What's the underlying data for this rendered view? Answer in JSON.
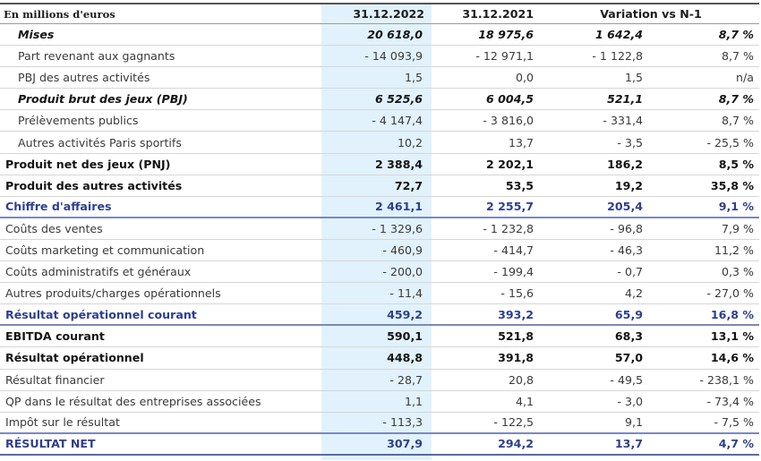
{
  "table": {
    "header": {
      "label": "En millions d'euros",
      "col1": "31.12.2022",
      "col2": "31.12.2021",
      "variation": "Variation vs N-1"
    },
    "highlight_color": "#e1f2fc",
    "accent_color": "#2e3f8f",
    "rows": [
      {
        "label": "Mises",
        "style": "ital",
        "indent": true,
        "v2022": "20 618,0",
        "v2021": "18 975,6",
        "var_abs": "1 642,4",
        "var_pct": "8,7 %"
      },
      {
        "label": "Part revenant aux gagnants",
        "style": "light",
        "indent": true,
        "v2022": "- 14 093,9",
        "v2021": "- 12 971,1",
        "var_abs": "- 1 122,8",
        "var_pct": "8,7 %"
      },
      {
        "label": "PBJ des autres activités",
        "style": "light",
        "indent": true,
        "v2022": "1,5",
        "v2021": "0,0",
        "var_abs": "1,5",
        "var_pct": "n/a"
      },
      {
        "label": "Produit brut des jeux (PBJ)",
        "style": "ital",
        "indent": true,
        "v2022": "6 525,6",
        "v2021": "6 004,5",
        "var_abs": "521,1",
        "var_pct": "8,7 %"
      },
      {
        "label": "Prélèvements publics",
        "style": "light",
        "indent": true,
        "v2022": "- 4 147,4",
        "v2021": "- 3 816,0",
        "var_abs": "- 331,4",
        "var_pct": "8,7 %"
      },
      {
        "label": "Autres activités Paris sportifs",
        "style": "light",
        "indent": true,
        "v2022": "10,2",
        "v2021": "13,7",
        "var_abs": "- 3,5",
        "var_pct": "- 25,5 %"
      },
      {
        "label": "Produit net des jeux (PNJ)",
        "style": "bold",
        "indent": false,
        "v2022": "2 388,4",
        "v2021": "2 202,1",
        "var_abs": "186,2",
        "var_pct": "8,5 %"
      },
      {
        "label": "Produit des autres activités",
        "style": "bold",
        "indent": false,
        "v2022": "72,7",
        "v2021": "53,5",
        "var_abs": "19,2",
        "var_pct": "35,8 %"
      },
      {
        "label": "Chiffre d'affaires",
        "style": "blue",
        "indent": false,
        "v2022": "2 461,1",
        "v2021": "2 255,7",
        "var_abs": "205,4",
        "var_pct": "9,1 %"
      },
      {
        "label": "Coûts des ventes",
        "style": "light",
        "indent": false,
        "v2022": "- 1 329,6",
        "v2021": "- 1 232,8",
        "var_abs": "- 96,8",
        "var_pct": "7,9 %"
      },
      {
        "label": "Coûts marketing et communication",
        "style": "light",
        "indent": false,
        "v2022": "- 460,9",
        "v2021": "- 414,7",
        "var_abs": "- 46,3",
        "var_pct": "11,2 %"
      },
      {
        "label": "Coûts administratifs et généraux",
        "style": "light",
        "indent": false,
        "v2022": "- 200,0",
        "v2021": "- 199,4",
        "var_abs": "- 0,7",
        "var_pct": "0,3 %"
      },
      {
        "label": "Autres produits/charges opérationnels",
        "style": "light",
        "indent": false,
        "v2022": "- 11,4",
        "v2021": "- 15,6",
        "var_abs": "4,2",
        "var_pct": "- 27,0 %"
      },
      {
        "label": "Résultat opérationnel courant",
        "style": "blue",
        "indent": false,
        "v2022": "459,2",
        "v2021": "393,2",
        "var_abs": "65,9",
        "var_pct": "16,8 %"
      },
      {
        "label": "EBITDA courant",
        "style": "bold",
        "indent": false,
        "v2022": "590,1",
        "v2021": "521,8",
        "var_abs": "68,3",
        "var_pct": "13,1 %"
      },
      {
        "label": "Résultat opérationnel",
        "style": "bold",
        "indent": false,
        "v2022": "448,8",
        "v2021": "391,8",
        "var_abs": "57,0",
        "var_pct": "14,6 %"
      },
      {
        "label": "Résultat financier",
        "style": "light",
        "indent": false,
        "v2022": "- 28,7",
        "v2021": "20,8",
        "var_abs": "- 49,5",
        "var_pct": "- 238,1 %"
      },
      {
        "label": "QP dans le résultat des entreprises associées",
        "style": "light",
        "indent": false,
        "v2022": "1,1",
        "v2021": "4,1",
        "var_abs": "- 3,0",
        "var_pct": "- 73,4 %"
      },
      {
        "label": "Impôt sur le résultat",
        "style": "light",
        "indent": false,
        "v2022": "- 113,3",
        "v2021": "- 122,5",
        "var_abs": "9,1",
        "var_pct": "- 7,5 %"
      },
      {
        "label": "RÉSULTAT NET",
        "style": "blue",
        "indent": false,
        "v2022": "307,9",
        "v2021": "294,2",
        "var_abs": "13,7",
        "var_pct": "4,7 %"
      }
    ]
  }
}
